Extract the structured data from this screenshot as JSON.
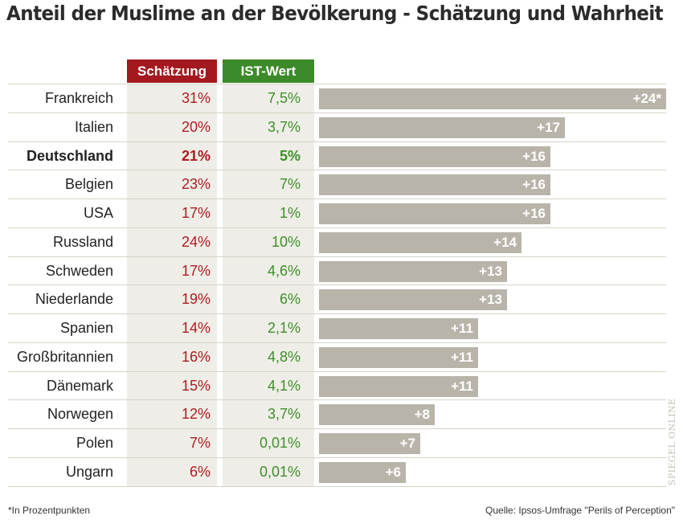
{
  "title": "Anteil der Muslime an der Bevölkerung - Schätzung und Wahrheit",
  "colors": {
    "estimate_header": "#a3191f",
    "actual_header": "#3d8a2a",
    "estimate_text": "#b01c22",
    "actual_text": "#3f8f2c",
    "bar": "#b9b4aa",
    "column_bg": "#efede7"
  },
  "headers": {
    "estimate": "Schätzung",
    "actual": "IST-Wert"
  },
  "chart_data": {
    "type": "bar",
    "orientation": "horizontal",
    "title": "Anteil der Muslime an der Bevölkerung - Schätzung und Wahrheit",
    "columns": [
      "Schätzung",
      "IST-Wert"
    ],
    "rows": [
      {
        "country": "Frankreich",
        "estimate": "31%",
        "actual": "7,5%",
        "diff": 24,
        "label": "+24*",
        "highlight": false
      },
      {
        "country": "Italien",
        "estimate": "20%",
        "actual": "3,7%",
        "diff": 17,
        "label": "+17",
        "highlight": false
      },
      {
        "country": "Deutschland",
        "estimate": "21%",
        "actual": "5%",
        "diff": 16,
        "label": "+16",
        "highlight": true
      },
      {
        "country": "Belgien",
        "estimate": "23%",
        "actual": "7%",
        "diff": 16,
        "label": "+16",
        "highlight": false
      },
      {
        "country": "USA",
        "estimate": "17%",
        "actual": "1%",
        "diff": 16,
        "label": "+16",
        "highlight": false
      },
      {
        "country": "Russland",
        "estimate": "24%",
        "actual": "10%",
        "diff": 14,
        "label": "+14",
        "highlight": false
      },
      {
        "country": "Schweden",
        "estimate": "17%",
        "actual": "4,6%",
        "diff": 13,
        "label": "+13",
        "highlight": false
      },
      {
        "country": "Niederlande",
        "estimate": "19%",
        "actual": "6%",
        "diff": 13,
        "label": "+13",
        "highlight": false
      },
      {
        "country": "Spanien",
        "estimate": "14%",
        "actual": "2,1%",
        "diff": 11,
        "label": "+11",
        "highlight": false
      },
      {
        "country": "Großbritannien",
        "estimate": "16%",
        "actual": "4,8%",
        "diff": 11,
        "label": "+11",
        "highlight": false
      },
      {
        "country": "Dänemark",
        "estimate": "15%",
        "actual": "4,1%",
        "diff": 11,
        "label": "+11",
        "highlight": false
      },
      {
        "country": "Norwegen",
        "estimate": "12%",
        "actual": "3,7%",
        "diff": 8,
        "label": "+8",
        "highlight": false
      },
      {
        "country": "Polen",
        "estimate": "7%",
        "actual": "0,01%",
        "diff": 7,
        "label": "+7",
        "highlight": false
      },
      {
        "country": "Ungarn",
        "estimate": "6%",
        "actual": "0,01%",
        "diff": 6,
        "label": "+6",
        "highlight": false
      }
    ],
    "xlim": [
      0,
      24
    ]
  },
  "footnote": "*In Prozentpunkten",
  "source": "Quelle: Ipsos-Umfrage \"Perils of Perception\"",
  "watermark": "SPIEGEL ONLINE"
}
